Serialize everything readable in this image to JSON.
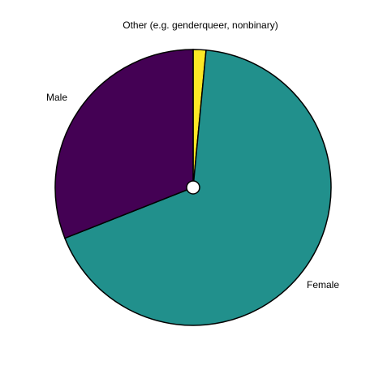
{
  "chart_data": {
    "type": "pie",
    "title": "",
    "slices": [
      {
        "label": "Other (e.g. genderqueer, nonbinary)",
        "value": 1.5,
        "color": "#FDE725"
      },
      {
        "label": "Female",
        "value": 67.5,
        "color": "#21908C"
      },
      {
        "label": "Male",
        "value": 31.0,
        "color": "#440154"
      }
    ],
    "start": "12 o'clock",
    "direction": "clockwise",
    "value_unit": "%",
    "center_hole": true,
    "legend": "none"
  }
}
